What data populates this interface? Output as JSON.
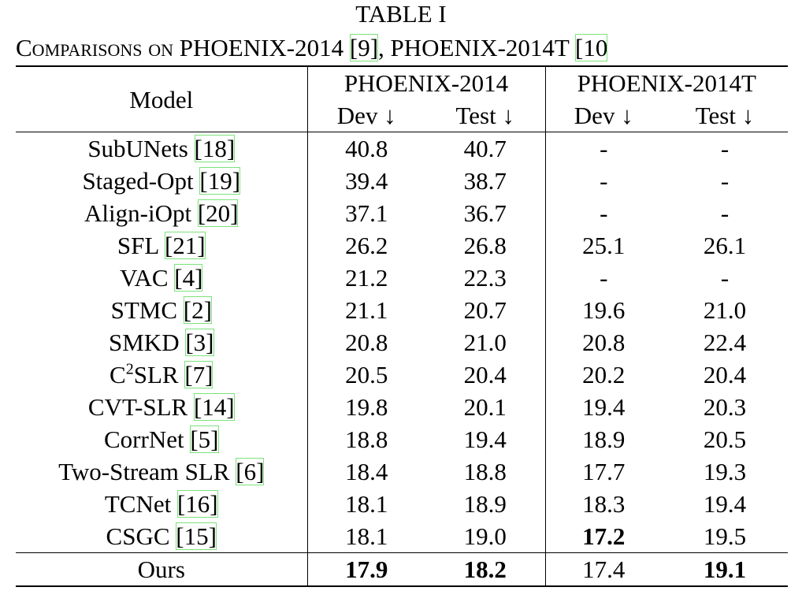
{
  "title": "TABLE I",
  "caption": {
    "text": "Comparisons on PHOENIX-2014 ",
    "cite1": "[9]",
    "mid": ", PHOENIX-2014T ",
    "cite2": "[10"
  },
  "header": {
    "model": "Model",
    "group1": "PHOENIX-2014",
    "group2": "PHOENIX-2014T",
    "dev": "Dev ↓",
    "test": "Test ↓"
  },
  "rows": [
    {
      "model": "SubUNets",
      "cite": "[18]",
      "v": [
        "40.8",
        "40.7",
        "-",
        "-"
      ],
      "bold": []
    },
    {
      "model": "Staged-Opt",
      "cite": "[19]",
      "v": [
        "39.4",
        "38.7",
        "-",
        "-"
      ],
      "bold": []
    },
    {
      "model": "Align-iOpt",
      "cite": "[20]",
      "v": [
        "37.1",
        "36.7",
        "-",
        "-"
      ],
      "bold": []
    },
    {
      "model": "SFL",
      "cite": "[21]",
      "v": [
        "26.2",
        "26.8",
        "25.1",
        "26.1"
      ],
      "bold": []
    },
    {
      "model": "VAC",
      "cite": "[4]",
      "v": [
        "21.2",
        "22.3",
        "-",
        "-"
      ],
      "bold": []
    },
    {
      "model": "STMC",
      "cite": "[2]",
      "v": [
        "21.1",
        "20.7",
        "19.6",
        "21.0"
      ],
      "bold": []
    },
    {
      "model": "SMKD",
      "cite": "[3]",
      "v": [
        "20.8",
        "21.0",
        "20.8",
        "22.4"
      ],
      "bold": []
    },
    {
      "model": "C",
      "sup": "2",
      "model_suffix": "SLR",
      "cite": "[7]",
      "v": [
        "20.5",
        "20.4",
        "20.2",
        "20.4"
      ],
      "bold": []
    },
    {
      "model": "CVT-SLR",
      "cite": "[14]",
      "v": [
        "19.8",
        "20.1",
        "19.4",
        "20.3"
      ],
      "bold": []
    },
    {
      "model": "CorrNet",
      "cite": "[5]",
      "v": [
        "18.8",
        "19.4",
        "18.9",
        "20.5"
      ],
      "bold": []
    },
    {
      "model": "Two-Stream SLR",
      "cite": "[6]",
      "v": [
        "18.4",
        "18.8",
        "17.7",
        "19.3"
      ],
      "bold": []
    },
    {
      "model": "TCNet",
      "cite": "[16]",
      "v": [
        "18.1",
        "18.9",
        "18.3",
        "19.4"
      ],
      "bold": []
    },
    {
      "model": "CSGC",
      "cite": "[15]",
      "v": [
        "18.1",
        "19.0",
        "17.2",
        "19.5"
      ],
      "bold": [
        2
      ]
    }
  ],
  "ours": {
    "model": "Ours",
    "v": [
      "17.9",
      "18.2",
      "17.4",
      "19.1"
    ],
    "bold": [
      0,
      1,
      3
    ]
  },
  "colors": {
    "citation_box": "#7be37b"
  }
}
